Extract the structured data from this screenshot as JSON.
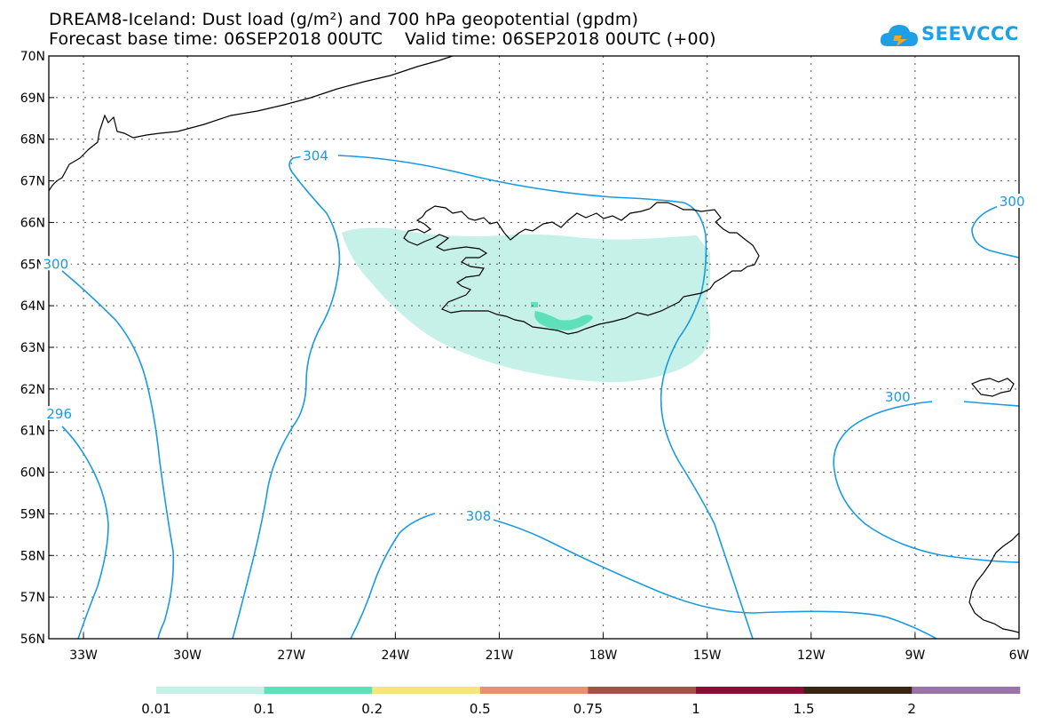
{
  "title": {
    "line1": "DREAM8-Iceland: Dust load (g/m²) and 700 hPa geopotential (gpdm)",
    "line2": "Forecast base time: 06SEP2018 00UTC    Valid time: 06SEP2018 00UTC (+00)"
  },
  "logo": {
    "text": "SEEVCCC",
    "icon": "cloud-icon"
  },
  "map": {
    "lat_ticks": [
      "70N",
      "69N",
      "68N",
      "67N",
      "66N",
      "65N",
      "64N",
      "63N",
      "62N",
      "61N",
      "60N",
      "59N",
      "58N",
      "57N",
      "56N"
    ],
    "lon_ticks": [
      "33W",
      "30W",
      "27W",
      "24W",
      "21W",
      "18W",
      "15W",
      "12W",
      "9W",
      "6W"
    ],
    "contour_labels": [
      {
        "text": "304",
        "lon": -26.3,
        "lat": 67.6
      },
      {
        "text": "308",
        "lon": -21.6,
        "lat": 58.95
      },
      {
        "text": "300",
        "lon": -9.5,
        "lat": 61.8
      },
      {
        "text": "300",
        "lon": -6.2,
        "lat": 66.5
      },
      {
        "text": "300",
        "lon": -33.8,
        "lat": 65.0
      },
      {
        "text": "296",
        "lon": -33.7,
        "lat": 61.4
      }
    ],
    "contour_color": "#1a9ae0",
    "dust_color_low": "#c6f1e9",
    "dust_color_mid": "#5ee0bb"
  },
  "colorbar": {
    "labels": [
      "0.01",
      "0.1",
      "0.2",
      "0.5",
      "0.75",
      "1",
      "1.5",
      "2"
    ],
    "colors": [
      "#c6f1e9",
      "#5ee0bb",
      "#f5e67a",
      "#ea8f6f",
      "#a6504a",
      "#8b0d33",
      "#3a2512",
      "#9a73a8"
    ]
  }
}
